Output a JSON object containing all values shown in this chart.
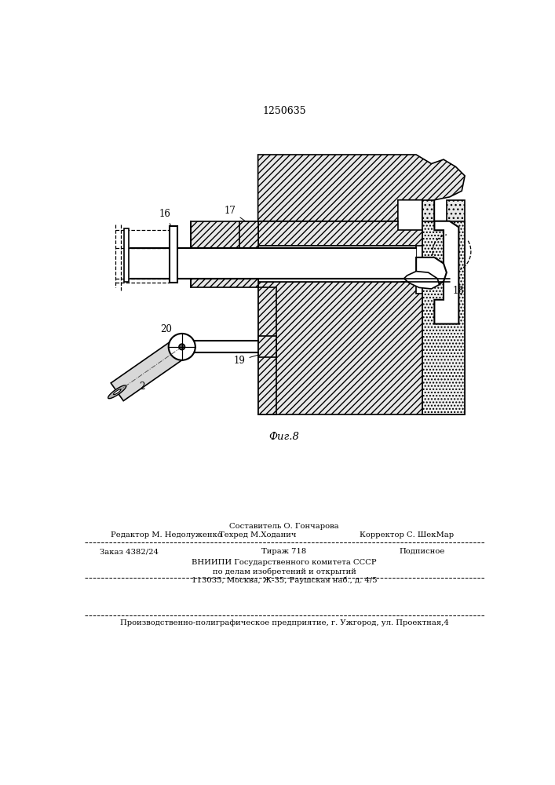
{
  "title_number": "1250635",
  "fig_label": "Фиг.8",
  "background_color": "#ffffff",
  "line_color": "#000000",
  "footer": {
    "compositor": "Составитель О. Гончарова",
    "editor": "Редактор М. Недолуженко",
    "techred": "Техред М.Ходанич",
    "corrector": "Корректор С. ШекМар",
    "order": "Заказ 4382/24",
    "tirazh": "Тираж 718",
    "podpisnoe": "Подписное",
    "vniipи": "ВНИИПИ Государственного комитета СССР",
    "po_delam": "по делам изобретений и открытий",
    "address": "113035, Москва, Ж-35, Раушская наб., д. 4/5",
    "predpriyatie": "Производственно-полиграфическое предприятие, г. Ужгород, ул. Проектная,4"
  }
}
